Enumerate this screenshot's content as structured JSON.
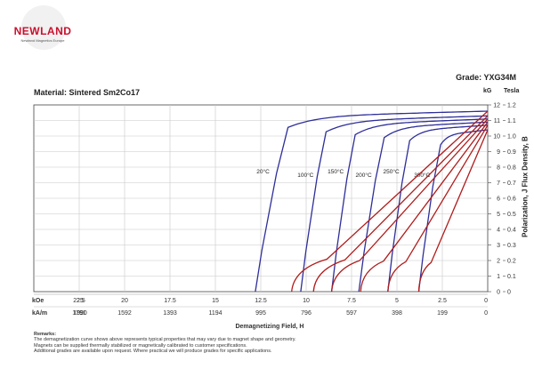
{
  "header": {
    "logo_text": "NEWLAND",
    "logo_subtext": "Newland Magnetics Europe",
    "grade": "Grade: YXG34M",
    "material": "Material: Sintered Sm2Co17"
  },
  "chart_data": {
    "type": "line",
    "title": "",
    "xlabel": "Demagnetizing Field, H",
    "ylabel": "Polarization, J   Flux Density, B",
    "x_units": [
      "kOe",
      "kA/m"
    ],
    "y_units": [
      "kG",
      "Tesla"
    ],
    "x_direction": "reversed",
    "xlim": [
      25,
      0
    ],
    "ylim": [
      0,
      12
    ],
    "x_ticks_koe": [
      "25",
      "22.5",
      "20",
      "17.5",
      "15",
      "12.5",
      "10",
      "7.5",
      "5",
      "2.5",
      "0"
    ],
    "x_ticks_kam": [
      "1990",
      "1791",
      "1592",
      "1393",
      "1194",
      "995",
      "796",
      "597",
      "398",
      "199",
      "0"
    ],
    "y_ticks_kg": [
      "12",
      "11",
      "10",
      "9",
      "8",
      "7",
      "6",
      "5",
      "4",
      "3",
      "2",
      "1",
      "0"
    ],
    "y_ticks_tesla": [
      "1.2",
      "1.1",
      "1.0",
      "0.9",
      "0.8",
      "0.7",
      "0.6",
      "0.5",
      "0.4",
      "0.3",
      "0.2",
      "0.1",
      "0"
    ],
    "grid": true,
    "series": [
      {
        "name": "20°C",
        "kind": "J",
        "color": "#2e2e9a",
        "Br": 11.6,
        "HcJ": 12.8,
        "knee": 11.0
      },
      {
        "name": "100°C",
        "kind": "J",
        "color": "#2e2e9a",
        "Br": 11.3,
        "HcJ": 10.3,
        "knee": 8.9
      },
      {
        "name": "150°C",
        "kind": "J",
        "color": "#2e2e9a",
        "Br": 11.1,
        "HcJ": 8.6,
        "knee": 7.3
      },
      {
        "name": "200°C",
        "kind": "J",
        "color": "#2e2e9a",
        "Br": 10.9,
        "HcJ": 7.1,
        "knee": 5.7
      },
      {
        "name": "250°C",
        "kind": "J",
        "color": "#2e2e9a",
        "Br": 10.7,
        "HcJ": 5.5,
        "knee": 4.3
      },
      {
        "name": "300°C",
        "kind": "J",
        "color": "#2e2e9a",
        "Br": 10.4,
        "HcJ": 3.8,
        "knee": 2.6
      },
      {
        "name": "",
        "kind": "B",
        "color": "#b01c1c",
        "Br": 11.6,
        "HcB": 10.8
      },
      {
        "name": "",
        "kind": "B",
        "color": "#b01c1c",
        "Br": 11.3,
        "HcB": 9.6
      },
      {
        "name": "",
        "kind": "B",
        "color": "#b01c1c",
        "Br": 11.1,
        "HcB": 8.6
      },
      {
        "name": "",
        "kind": "B",
        "color": "#b01c1c",
        "Br": 10.9,
        "HcB": 7.0
      },
      {
        "name": "",
        "kind": "B",
        "color": "#b01c1c",
        "Br": 10.7,
        "HcB": 5.5
      },
      {
        "name": "",
        "kind": "B",
        "color": "#b01c1c",
        "Br": 10.4,
        "HcB": 3.8
      }
    ]
  },
  "remarks": {
    "title": "Remarks:",
    "lines": [
      "The demagnetization curve shows above represents typical properties that may vary due to magnet shape and geometry.",
      "Magnets can be supplied thermally stabilized or magnetically calibrated to customer specifications.",
      "Additional grades are available upon request. Where practical we will produce grades for specific applications."
    ]
  }
}
